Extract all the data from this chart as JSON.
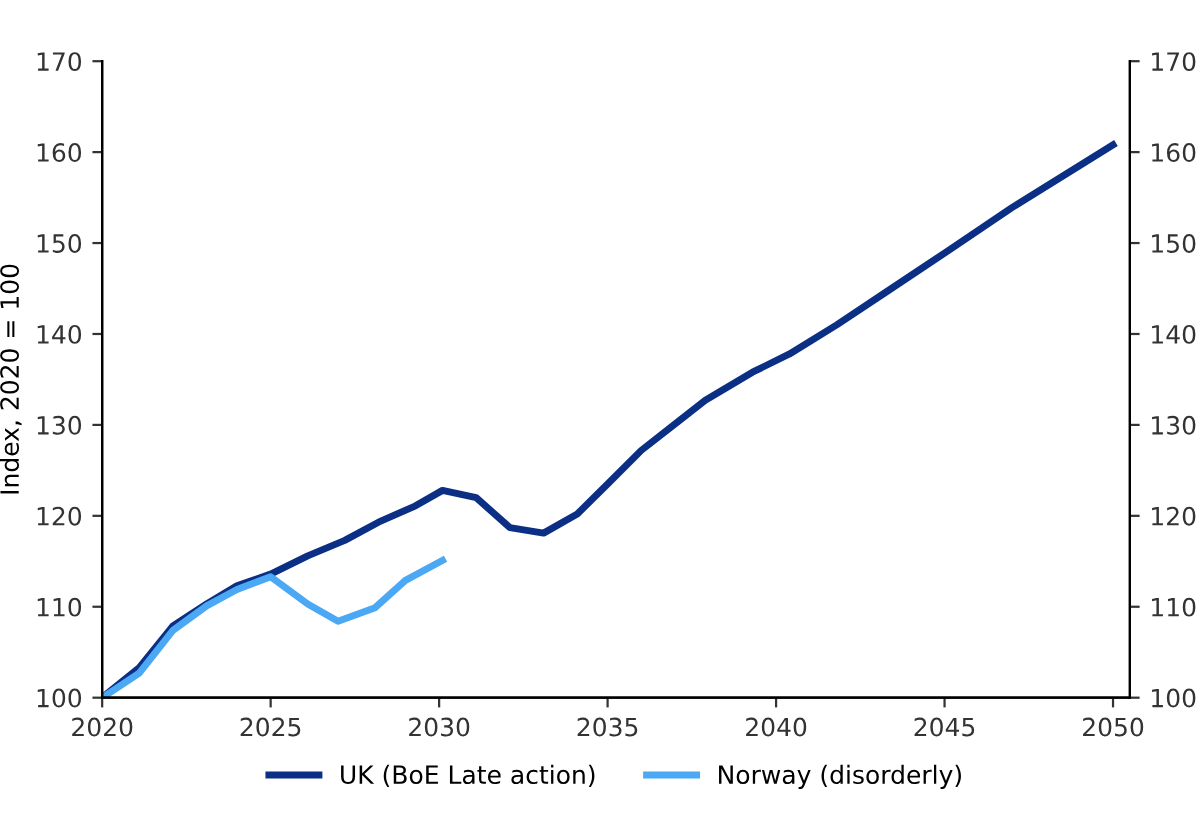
{
  "chart_data": {
    "type": "line",
    "ylabel": "Index, 2020 = 100",
    "xlim": [
      2020,
      2050.5
    ],
    "xticks": [
      2020,
      2025,
      2030,
      2035,
      2040,
      2045,
      2050
    ],
    "ylim": [
      100,
      170
    ],
    "yticks": [
      100,
      110,
      120,
      130,
      140,
      150,
      160,
      170
    ],
    "y2lim": [
      100,
      170
    ],
    "y2ticks": [
      100,
      110,
      120,
      130,
      140,
      150,
      160,
      170
    ],
    "grid": false,
    "legend": "bottom",
    "line_style": "solid",
    "marker": "none",
    "series": [
      {
        "name": "UK (BoE Late action)",
        "color": "#0b2f84",
        "x": [
          2020,
          2021.1,
          2022.1,
          2023.1,
          2024.0,
          2025.0,
          2026.1,
          2027.2,
          2028.2,
          2029.3,
          2030.1,
          2031.1,
          2032.1,
          2033.1,
          2034.1,
          2035.0,
          2036.0,
          2037.0,
          2037.9,
          2039.3,
          2040.4,
          2041.8,
          2043.3,
          2045.0,
          2047.0,
          2050.0
        ],
        "values": [
          100,
          103.3,
          107.9,
          110.3,
          112.3,
          113.6,
          115.6,
          117.3,
          119.3,
          121.1,
          122.8,
          122.0,
          118.7,
          118.1,
          120.2,
          123.5,
          127.2,
          130.1,
          132.7,
          135.8,
          137.8,
          141.0,
          144.7,
          148.9,
          153.9,
          160.8
        ]
      },
      {
        "name": "Norway (disorderly)",
        "color": "#4ba8f5",
        "x": [
          2020,
          2021.1,
          2022.1,
          2023.1,
          2024.0,
          2025.0,
          2026.1,
          2027.0,
          2028.1,
          2029.0,
          2030.1
        ],
        "values": [
          100,
          102.7,
          107.4,
          110.1,
          111.9,
          113.3,
          110.3,
          108.4,
          109.9,
          112.9,
          115.1
        ]
      }
    ]
  }
}
